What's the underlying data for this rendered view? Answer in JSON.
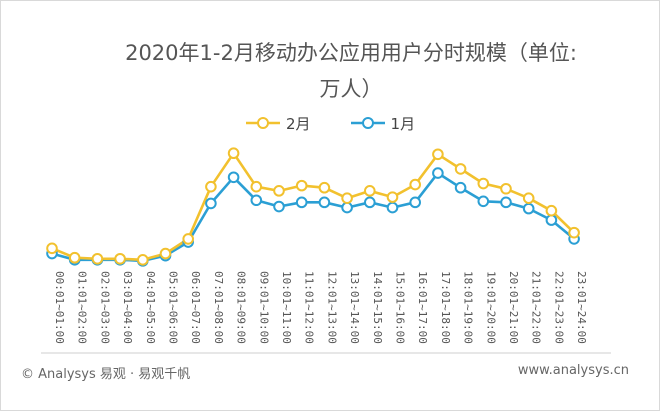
{
  "chart_data": {
    "type": "line",
    "title_line1": "2020年1-2月移动办公应用用户分时规模（单位:",
    "title_line2": "万人）",
    "categories": [
      "00:01~01:00",
      "01:01~02:00",
      "02:01~03:00",
      "03:01~04:00",
      "04:01~05:00",
      "05:01~06:00",
      "06:01~07:00",
      "07:01~08:00",
      "08:01~09:00",
      "09:01~10:00",
      "10:01~11:00",
      "11:01~12:00",
      "12:01~13:00",
      "13:01~14:00",
      "14:01~15:00",
      "15:01~16:00",
      "16:01~17:00",
      "17:01~18:00",
      "18:01~19:00",
      "19:01~20:00",
      "20:01~21:00",
      "21:01~22:00",
      "22:01~23:00",
      "23:01~24:00"
    ],
    "series": [
      {
        "name": "2月",
        "color": "#f2c12e",
        "values": [
          15,
          6,
          5,
          5,
          4,
          10,
          24,
          74,
          106,
          74,
          70,
          75,
          73,
          63,
          70,
          64,
          76,
          105,
          91,
          77,
          72,
          63,
          51,
          30
        ]
      },
      {
        "name": "1月",
        "color": "#2b9fd4",
        "values": [
          10,
          4,
          4,
          4,
          3,
          8,
          21,
          58,
          83,
          61,
          55,
          59,
          59,
          54,
          59,
          54,
          59,
          87,
          73,
          60,
          59,
          53,
          42,
          24
        ]
      }
    ],
    "ylim": [
      0,
      130
    ],
    "grid": false,
    "legend": "top"
  },
  "footer": {
    "left": "© Analysys 易观 · 易观千帆",
    "right": "www.analysys.cn"
  }
}
